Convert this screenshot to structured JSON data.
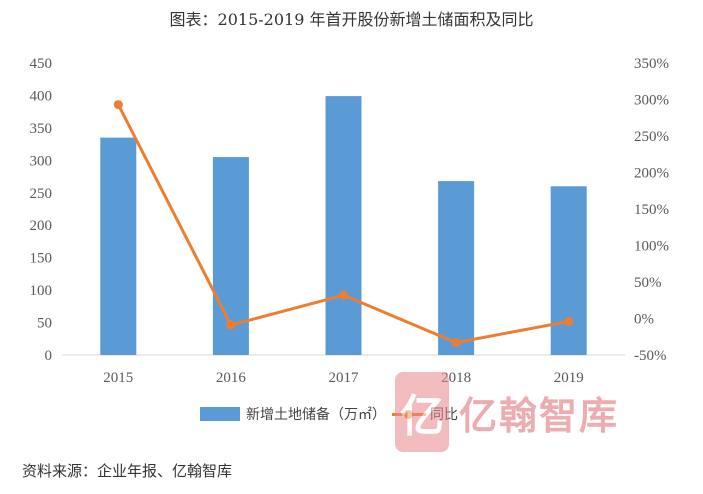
{
  "title": "图表：2015-2019 年首开股份新增土储面积及同比",
  "source": "资料来源：企业年报、亿翰智库",
  "watermark": {
    "logo_char": "亿",
    "text": "亿翰智库"
  },
  "colors": {
    "bar": "#5b9bd5",
    "line": "#ed7d31",
    "axis": "#d9d9d9"
  },
  "chart_data": {
    "type": "bar",
    "title": "图表：2015-2019 年首开股份新增土储面积及同比",
    "categories": [
      "2015",
      "2016",
      "2017",
      "2018",
      "2019"
    ],
    "series": [
      {
        "name": "新增土地储备（万㎡）",
        "type": "bar",
        "axis": "left",
        "values": [
          335,
          305,
          399,
          268,
          260
        ]
      },
      {
        "name": "同比",
        "type": "line",
        "axis": "right",
        "unit": "%",
        "values": [
          293,
          -9,
          32,
          -33,
          -4
        ]
      }
    ],
    "y_left": {
      "min": 0,
      "max": 450,
      "step": 50,
      "ticks": [
        "0",
        "50",
        "100",
        "150",
        "200",
        "250",
        "300",
        "350",
        "400",
        "450"
      ]
    },
    "y_right": {
      "min": -50,
      "max": 350,
      "step": 50,
      "ticks": [
        "-50%",
        "0%",
        "50%",
        "100%",
        "150%",
        "200%",
        "250%",
        "300%",
        "350%"
      ]
    },
    "legend_position": "bottom",
    "grid": false
  }
}
